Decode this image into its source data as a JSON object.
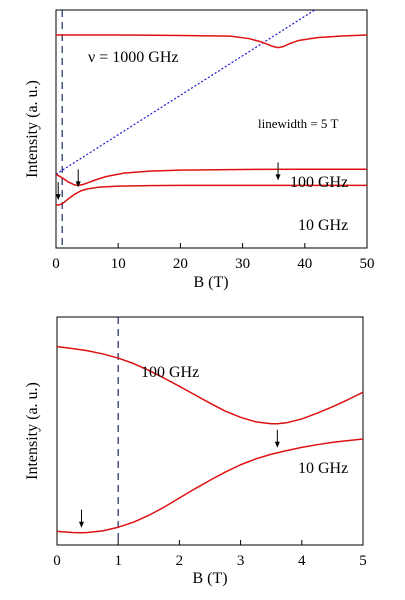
{
  "chart_data": [
    {
      "type": "line",
      "xlabel": "B (T)",
      "ylabel": "Intensity (a. u.)",
      "xlim": [
        0,
        50
      ],
      "ylim": [
        0,
        1
      ],
      "xticks": [
        "0",
        "10",
        "20",
        "30",
        "40",
        "50"
      ],
      "dashed_line_x": 1,
      "diagonal_line": {
        "x": [
          0,
          41.6
        ],
        "y": [
          0.31,
          1.0
        ]
      },
      "annotations": [
        "ν = 1000 GHz",
        "linewidth = 5 T",
        "100 GHz",
        "10 GHz"
      ],
      "arrows_at": [
        0.36,
        3.57,
        35.7
      ],
      "series": [
        {
          "name": "1000 GHz",
          "x": [
            0,
            10,
            20,
            28,
            31,
            33,
            34,
            35,
            35.7,
            36.5,
            37.5,
            39,
            42,
            46,
            50
          ],
          "y": [
            0.895,
            0.895,
            0.893,
            0.89,
            0.88,
            0.866,
            0.856,
            0.846,
            0.842,
            0.846,
            0.858,
            0.872,
            0.884,
            0.891,
            0.895
          ]
        },
        {
          "name": "100 GHz",
          "x": [
            0,
            1,
            2,
            3,
            3.57,
            4.5,
            6,
            8,
            11,
            15,
            20,
            30,
            40,
            50
          ],
          "y": [
            0.31,
            0.295,
            0.277,
            0.265,
            0.263,
            0.268,
            0.283,
            0.3,
            0.315,
            0.323,
            0.327,
            0.33,
            0.331,
            0.331
          ]
        },
        {
          "name": "10 GHz",
          "x": [
            0,
            0.36,
            1,
            1.5,
            2,
            3,
            4,
            5,
            7,
            10,
            15,
            20,
            30,
            40,
            50
          ],
          "y": [
            0.183,
            0.18,
            0.186,
            0.196,
            0.207,
            0.226,
            0.24,
            0.248,
            0.256,
            0.26,
            0.262,
            0.263,
            0.263,
            0.263,
            0.263
          ]
        }
      ]
    },
    {
      "type": "line",
      "xlabel": "B (T)",
      "ylabel": "Intensity (a. u.)",
      "xlim": [
        0,
        5
      ],
      "ylim": [
        0,
        1
      ],
      "xticks": [
        "0",
        "1",
        "2",
        "3",
        "4",
        "5"
      ],
      "dashed_line_x": 1,
      "annotations": [
        "100 GHz",
        "10 GHz"
      ],
      "arrows_at": [
        0.4,
        3.6
      ],
      "series": [
        {
          "name": "100 GHz",
          "x": [
            0,
            0.25,
            0.5,
            0.75,
            1,
            1.25,
            1.5,
            1.75,
            2,
            2.25,
            2.5,
            2.75,
            3,
            3.25,
            3.5,
            3.6,
            3.75,
            4,
            4.25,
            4.5,
            4.75,
            5
          ],
          "y": [
            0.87,
            0.862,
            0.852,
            0.838,
            0.82,
            0.796,
            0.766,
            0.732,
            0.696,
            0.659,
            0.622,
            0.587,
            0.56,
            0.54,
            0.532,
            0.532,
            0.536,
            0.553,
            0.578,
            0.606,
            0.637,
            0.67
          ]
        },
        {
          "name": "10 GHz",
          "x": [
            0,
            0.25,
            0.4,
            0.5,
            0.75,
            1,
            1.25,
            1.5,
            1.75,
            2,
            2.25,
            2.5,
            2.75,
            3,
            3.25,
            3.5,
            3.75,
            4,
            4.25,
            4.5,
            4.75,
            5
          ],
          "y": [
            0.06,
            0.055,
            0.054,
            0.055,
            0.062,
            0.078,
            0.1,
            0.13,
            0.166,
            0.206,
            0.246,
            0.284,
            0.32,
            0.352,
            0.378,
            0.398,
            0.414,
            0.428,
            0.44,
            0.45,
            0.458,
            0.465
          ]
        }
      ]
    }
  ]
}
